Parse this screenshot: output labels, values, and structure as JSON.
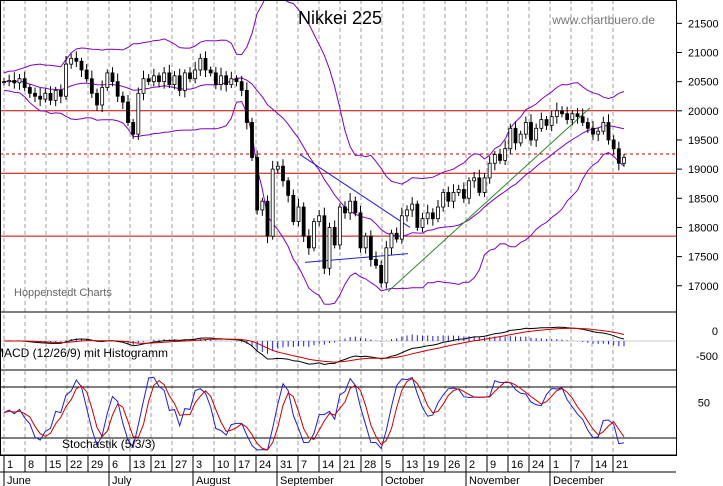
{
  "title": "Nikkei 225",
  "watermark": "www.chartbuero.de",
  "source_label": "Hoppenstedt Charts",
  "macd_label": "MACD (12/26/9) mit Histogramm",
  "stoch_label": "Stochastik (5/3/3)",
  "x_day_ticks": [
    "1",
    "8",
    "15",
    "22",
    "29",
    "6",
    "13",
    "21",
    "27",
    "3",
    "10",
    "17",
    "24",
    "31",
    "7",
    "14",
    "21",
    "28",
    "5",
    "13",
    "19",
    "26",
    "2",
    "9",
    "16",
    "24",
    "1",
    "7",
    "14",
    "21"
  ],
  "month_labels": [
    "June",
    "July",
    "August",
    "September",
    "October",
    "November",
    "December"
  ],
  "chart_data": [
    {
      "type": "candlestick",
      "title": "Nikkei 225",
      "y_ticks": [
        17000,
        17500,
        18000,
        18500,
        19000,
        19500,
        20000,
        20500,
        21000,
        21500
      ],
      "ylim": [
        16550,
        21900
      ],
      "horizontal_lines": [
        20000,
        18930,
        17850
      ],
      "dashed_line": 19260,
      "bollinger_bands": true,
      "trendlines": true,
      "colors": {
        "candles": "#000",
        "bands": "#8000c0",
        "support": "#cc0000",
        "trend_up": "#2a8a2a",
        "trend": "#2020d0",
        "grid": "#a0a0a0"
      },
      "closes": [
        20500,
        20520,
        20480,
        20550,
        20400,
        20300,
        20250,
        20200,
        20300,
        20180,
        20350,
        20250,
        20800,
        20900,
        20850,
        20700,
        20550,
        20300,
        20100,
        20400,
        20650,
        20500,
        20250,
        20150,
        19800,
        19600,
        20300,
        20550,
        20500,
        20600,
        20500,
        20650,
        20450,
        20600,
        20350,
        20650,
        20550,
        20700,
        20900,
        20700,
        20650,
        20450,
        20600,
        20450,
        20550,
        20500,
        20350,
        19800,
        19200,
        18300,
        18450,
        17850,
        19000,
        19050,
        18800,
        18550,
        18100,
        18350,
        17850,
        17650,
        18100,
        18200,
        17300,
        18000,
        17700,
        18350,
        18250,
        18450,
        18250,
        17650,
        17850,
        17450,
        17350,
        17050,
        17650,
        17900,
        17800,
        18200,
        18300,
        18400,
        18000,
        18150,
        18250,
        18150,
        18350,
        18600,
        18450,
        18600,
        18650,
        18500,
        18800,
        18850,
        18600,
        18850,
        19100,
        19250,
        19150,
        19350,
        19700,
        19450,
        19600,
        19800,
        19500,
        19700,
        19850,
        19750,
        19900,
        20000,
        19950,
        19850,
        19950,
        19900,
        19800,
        19700,
        19600,
        19650,
        19800,
        19500,
        19350,
        19100,
        19200
      ],
      "macd_ylim": [
        -800,
        800
      ],
      "macd_ticks": [
        0,
        -500
      ],
      "stoch_ticks": [
        50
      ],
      "stoch_ylim": [
        0,
        100
      ],
      "stoch_levels": [
        80,
        20
      ]
    }
  ]
}
